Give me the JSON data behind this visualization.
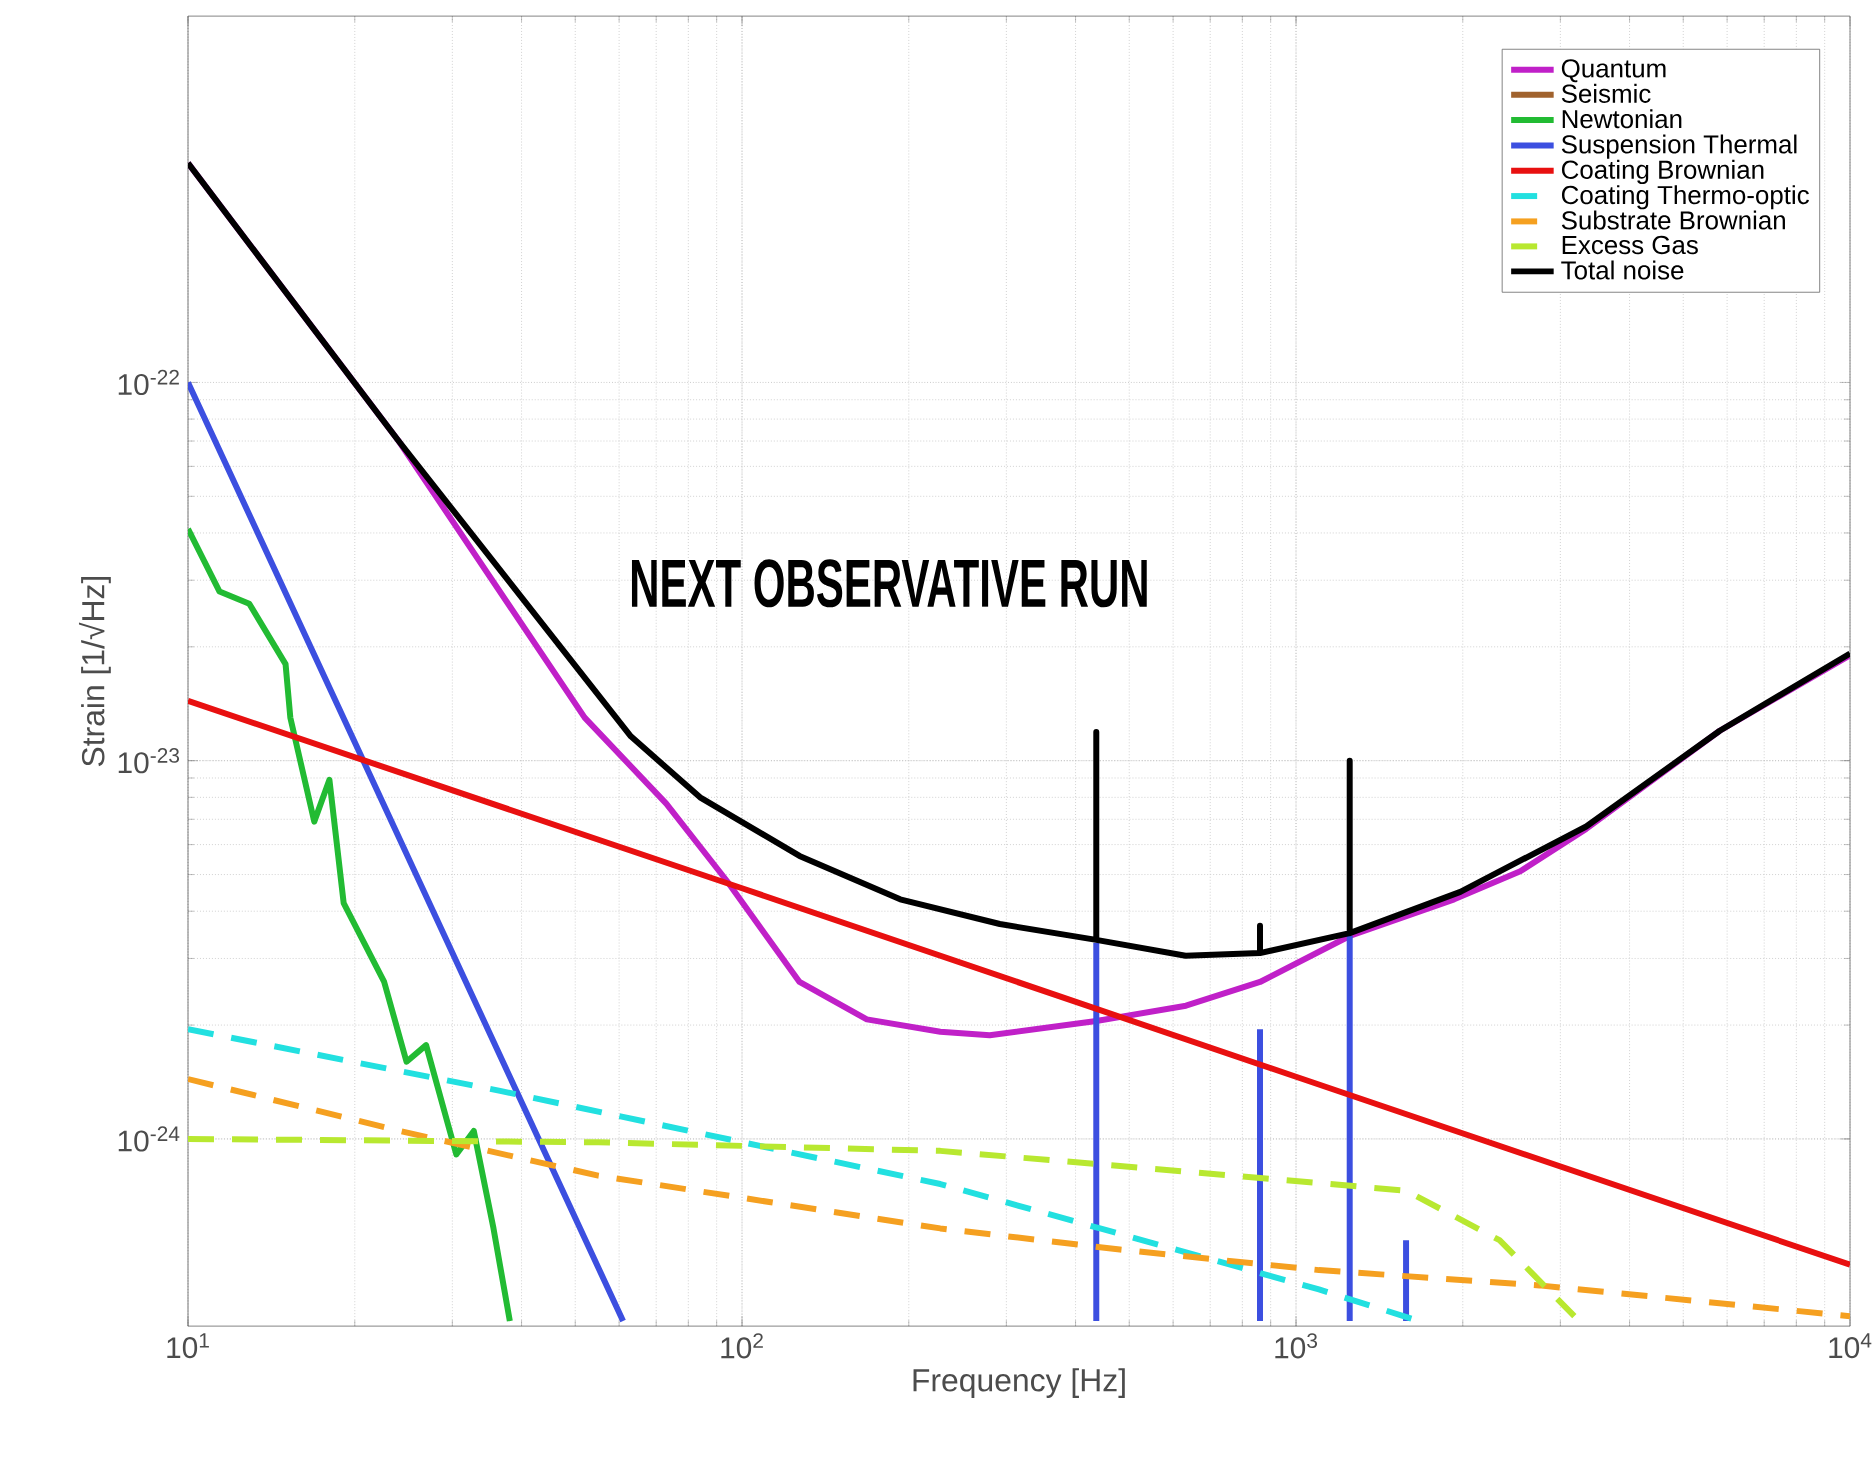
{
  "chart_data": {
    "type": "line",
    "xlabel": "Frequency [Hz]",
    "ylabel": "Strain [1/√Hz]",
    "log": "xy",
    "grid": true,
    "legend": "top right",
    "xlim": [
      10,
      10000
    ],
    "ylim": [
      3.2e-25,
      9.3e-22
    ],
    "xticks": [
      {
        "value": 10,
        "label": "10$^{1}$"
      },
      {
        "value": 100,
        "label": "10$^{2}$"
      },
      {
        "value": 1000,
        "label": "10$^{3}$"
      },
      {
        "value": 10000,
        "label": "10$^{4}$"
      }
    ],
    "yticks": [
      {
        "value": 1e-24,
        "label": "10$^{-24}$"
      },
      {
        "value": 1e-23,
        "label": "10$^{-23}$"
      },
      {
        "value": 1e-22,
        "label": "10$^{-22}$"
      }
    ],
    "annotations": [
      "NEXT OBSERVATIVE RUN"
    ],
    "series": [
      {
        "name": "Quantum",
        "color": "#c020c8",
        "line_style": "solid",
        "x": [
          10,
          24,
          52,
          73,
          94,
          127,
          168,
          228,
          280,
          436,
          633,
          861,
          1250,
          1930,
          2540,
          3340,
          5820,
          10000
        ],
        "values": [
          3.8e-22,
          7e-23,
          1.3e-23,
          7.7e-24,
          4.8e-24,
          2.6e-24,
          2.07e-24,
          1.92e-24,
          1.88e-24,
          2.05e-24,
          2.25e-24,
          2.6e-24,
          3.44e-24,
          4.3e-24,
          5.1e-24,
          6.6e-24,
          1.2e-23,
          1.9e-23
        ]
      },
      {
        "name": "Seismic",
        "color": "#a0622d",
        "line_style": "solid"
      },
      {
        "name": "Newtonian",
        "color": "#22bb33",
        "line_style": "solid",
        "x": [
          10,
          11.4,
          12.9,
          15.0,
          15.3,
          16.9,
          18.0,
          19.1,
          22.6,
          24.8,
          26.9,
          30.5,
          32.8,
          35.6,
          38.1
        ],
        "values": [
          4.1e-23,
          2.8e-23,
          2.6e-23,
          1.8e-23,
          1.3e-23,
          6.9e-24,
          8.9e-24,
          4.2e-24,
          2.6e-24,
          1.6e-24,
          1.77e-24,
          9.1e-25,
          1.05e-24,
          5.8e-25,
          3.3e-25
        ]
      },
      {
        "name": "Suspension Thermal",
        "color": "#3c4fe0",
        "line_style": "solid",
        "x": [
          10,
          61,
          100,
          436,
          436,
          500,
          861,
          861,
          1000,
          1250,
          1250,
          1400,
          1580,
          1580
        ],
        "values": [
          1e-22,
          3.3e-25,
          null,
          3.3e-25,
          3.3e-24,
          null,
          3.3e-25,
          1.95e-24,
          null,
          3.3e-25,
          3.44e-24,
          null,
          3.3e-25,
          5.4e-25
        ]
      },
      {
        "name": "Coating Brownian",
        "color": "#e81010",
        "line_style": "solid",
        "x": [
          10,
          100,
          1000,
          10000
        ],
        "values": [
          1.44e-23,
          4.6e-24,
          1.46e-24,
          4.65e-25
        ]
      },
      {
        "name": "Coating Thermo-optic",
        "color": "#22e0e0",
        "line_style": "dashed",
        "x": [
          10,
          36.6,
          97,
          228,
          443,
          1100,
          1670
        ],
        "values": [
          1.95e-24,
          1.34e-24,
          9.9e-25,
          7.6e-25,
          5.8e-25,
          4e-25,
          3.3e-25
        ]
      },
      {
        "name": "Substrate Brownian",
        "color": "#f5a020",
        "line_style": "dashed",
        "x": [
          10,
          24.1,
          55,
          228,
          481,
          1100,
          2750,
          10000
        ],
        "values": [
          1.44e-24,
          1.05e-24,
          8e-25,
          5.8e-25,
          5.1e-25,
          4.5e-25,
          4.1e-25,
          3.4e-25
        ]
      },
      {
        "name": "Excess Gas",
        "color": "#b8e830",
        "line_style": "dashed",
        "x": [
          10,
          55,
          228,
          632,
          1580,
          2330,
          3180
        ],
        "values": [
          1e-24,
          9.8e-25,
          9.3e-25,
          8.2e-25,
          7.3e-25,
          5.4e-25,
          3.4e-25
        ]
      },
      {
        "name": "Total noise",
        "color": "#000000",
        "line_style": "solid",
        "x": [
          10,
          24,
          63,
          84,
          127,
          193,
          292,
          436,
          436,
          436,
          632,
          861,
          861,
          861,
          1250,
          1250,
          1250,
          1980,
          3340,
          5820,
          10000
        ],
        "values": [
          3.8e-22,
          7e-23,
          1.16e-23,
          8e-24,
          5.6e-24,
          4.3e-24,
          3.7e-24,
          3.36e-24,
          1.19e-23,
          3.36e-24,
          3.05e-24,
          3.1e-24,
          3.66e-24,
          3.1e-24,
          3.5e-24,
          1e-23,
          3.5e-24,
          4.5e-24,
          6.7e-24,
          1.2e-23,
          1.92e-23
        ]
      }
    ]
  }
}
